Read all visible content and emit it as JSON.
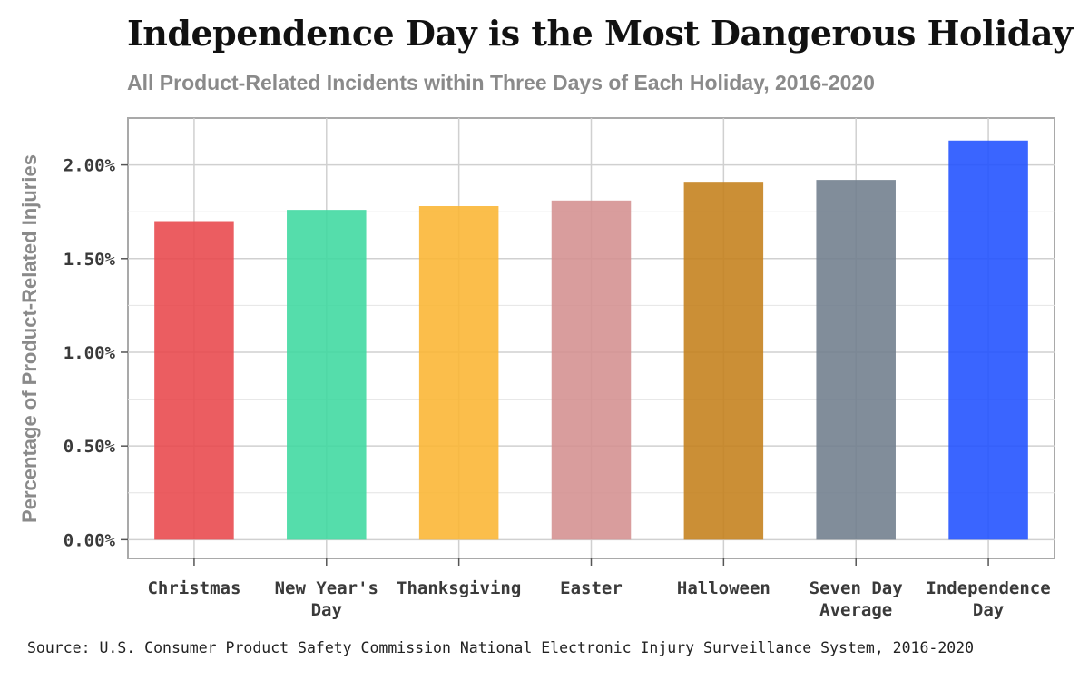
{
  "header": {
    "title": "Independence Day is the Most Dangerous Holiday",
    "subtitle": "All Product-Related Incidents within Three Days of Each Holiday, 2016-2020"
  },
  "footer": {
    "source": "Source: U.S. Consumer Product Safety Commission National Electronic Injury Surveillance System, 2016-2020"
  },
  "chart_data": {
    "type": "bar",
    "title": "Independence Day is the Most Dangerous Holiday",
    "subtitle": "All Product-Related Incidents within Three Days of Each Holiday, 2016-2020",
    "xlabel": "",
    "ylabel": "Percentage of Product-Related Injuries",
    "categories": [
      [
        "Christmas"
      ],
      [
        "New Year's",
        "Day"
      ],
      [
        "Thanksgiving"
      ],
      [
        "Easter"
      ],
      [
        "Halloween"
      ],
      [
        "Seven Day",
        "Average"
      ],
      [
        "Independence",
        "Day"
      ]
    ],
    "values": [
      1.7,
      1.76,
      1.78,
      1.81,
      1.91,
      1.92,
      2.13
    ],
    "unit": "%",
    "colors": [
      "#e8474b",
      "#3dd89f",
      "#fbb532",
      "#d48f8f",
      "#c47f1a",
      "#707d8c",
      "#1f50ff"
    ],
    "bar_opacity": 0.88,
    "ylim": [
      -0.1,
      2.25
    ],
    "yticks": [
      0,
      0.5,
      1.0,
      1.5,
      2.0
    ],
    "ytick_labels": [
      "0.00%",
      "0.50%",
      "1.00%",
      "1.50%",
      "2.00%"
    ],
    "grid": true,
    "legend": "none"
  }
}
